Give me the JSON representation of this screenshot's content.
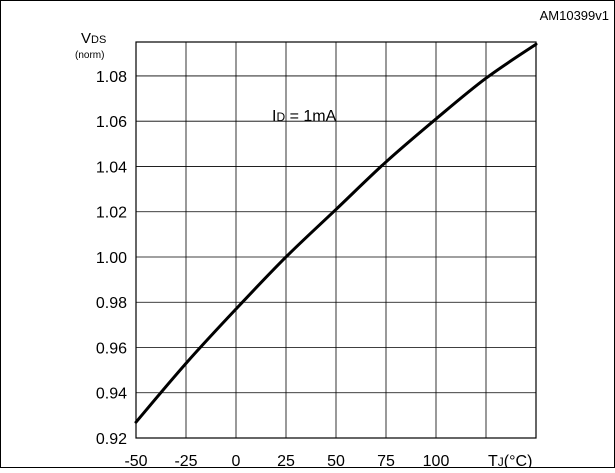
{
  "figure_id": "AM10399v1",
  "chart_data": {
    "type": "line",
    "ylabel_main": "V",
    "ylabel_sub": "DS",
    "ylabel_unit": "(norm)",
    "xlabel_main": "T",
    "xlabel_sub": "J",
    "xlabel_unit": "(°C)",
    "annotation_main": "I",
    "annotation_sub": "D",
    "annotation_rest": " = 1mA",
    "xlim": [
      -50,
      150
    ],
    "ylim": [
      0.92,
      1.095
    ],
    "x_ticks": [
      -50,
      -25,
      0,
      25,
      50,
      75,
      100
    ],
    "x_tick_labels": [
      "-50",
      "-25",
      "0",
      "25",
      "50",
      "75",
      "100"
    ],
    "x_grid": [
      -50,
      -25,
      0,
      25,
      50,
      75,
      100,
      125,
      150
    ],
    "y_ticks": [
      0.92,
      0.94,
      0.96,
      0.98,
      1.0,
      1.02,
      1.04,
      1.06,
      1.08
    ],
    "y_tick_labels": [
      "0.92",
      "0.94",
      "0.96",
      "0.98",
      "1.00",
      "1.02",
      "1.04",
      "1.06",
      "1.08"
    ],
    "grid": true,
    "series": [
      {
        "x": [
          -50,
          -25,
          0,
          25,
          50,
          75,
          100,
          125,
          150
        ],
        "y": [
          0.927,
          0.953,
          0.977,
          1.0,
          1.021,
          1.042,
          1.061,
          1.079,
          1.094
        ]
      }
    ]
  }
}
